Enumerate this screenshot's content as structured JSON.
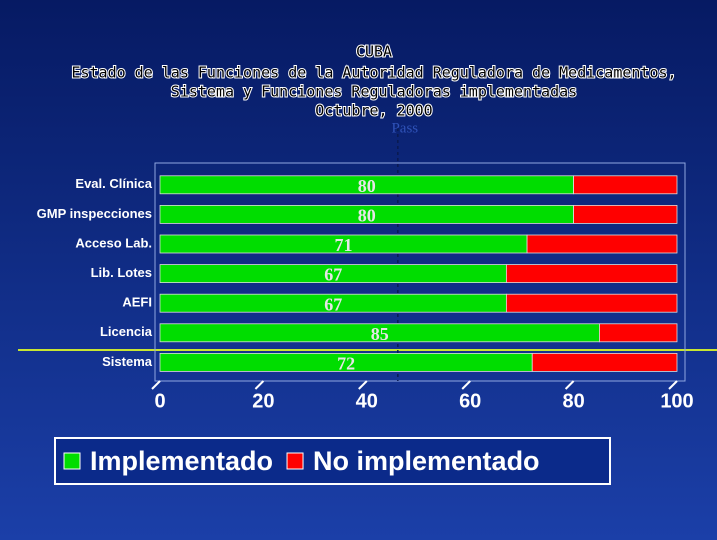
{
  "chart_data": {
    "type": "stacked_barh",
    "title": "CUBA",
    "subtitle": [
      "Estado de las Funciones de la Autoridad Reguladora de Medicamentos,",
      "Sistema y Funciones Reguladoras implementadas",
      "Octubre, 2000"
    ],
    "categories": [
      "Eval. Clínica",
      "GMP inspecciones",
      "Acceso Lab.",
      "Lib. Lotes",
      "AEFI",
      "Licencia",
      "Sistema"
    ],
    "series": [
      {
        "name": "Implementado",
        "color": "#00dd00",
        "values": [
          80,
          80,
          71,
          67,
          67,
          85,
          72
        ]
      },
      {
        "name": "No implementado",
        "color": "#ff0000",
        "values": [
          20,
          20,
          29,
          33,
          33,
          15,
          28
        ]
      }
    ],
    "value_labels_series": 0,
    "xlim": [
      0,
      100
    ],
    "xticks": [
      0,
      20,
      40,
      60,
      80,
      100
    ],
    "reference_line": {
      "label": "Pass",
      "value": 46
    },
    "legend": "bottom"
  }
}
